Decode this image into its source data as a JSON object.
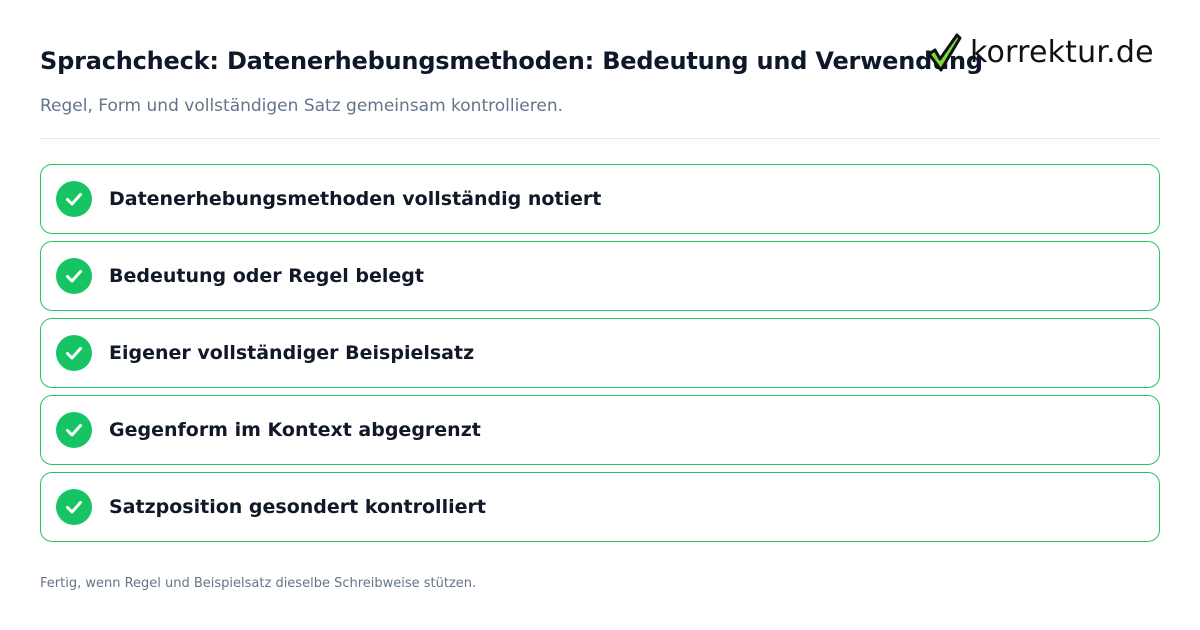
{
  "header": {
    "title": "Sprachcheck: Datenerhebungsmethoden: Bedeutung und Verwendung",
    "subtitle": "Regel, Form und vollständigen Satz gemeinsam kontrollieren."
  },
  "logo": {
    "text": "korrektur.de",
    "icon": "checkmark-icon",
    "check_color": "#111111",
    "check_fill": "#7cdc3a"
  },
  "checklist": {
    "icon": "check-circle-icon",
    "accent_color": "#22c55e",
    "items": [
      {
        "label": "Datenerhebungsmethoden vollständig notiert",
        "checked": true
      },
      {
        "label": "Bedeutung oder Regel belegt",
        "checked": true
      },
      {
        "label": "Eigener vollständiger Beispielsatz",
        "checked": true
      },
      {
        "label": "Gegenform im Kontext abgegrenzt",
        "checked": true
      },
      {
        "label": "Satzposition gesondert kontrolliert",
        "checked": true
      }
    ]
  },
  "footer": {
    "note": "Fertig, wenn Regel und Beispielsatz dieselbe Schreibweise stützen."
  }
}
